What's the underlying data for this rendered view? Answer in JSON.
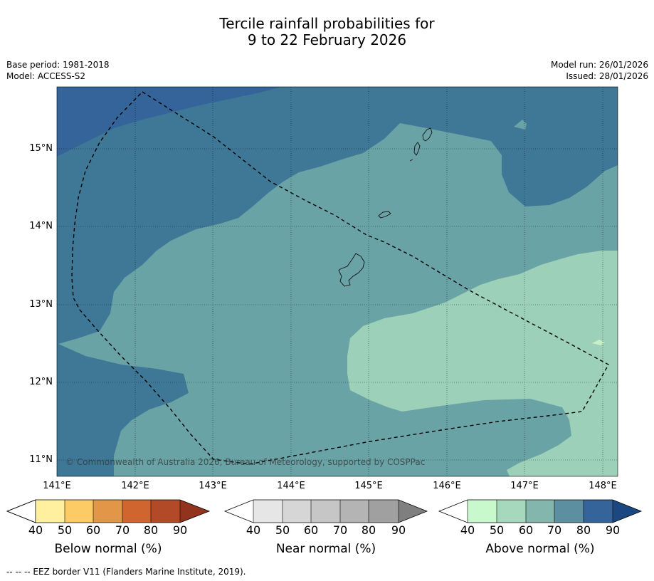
{
  "title": {
    "line1": "Tercile rainfall probabilities for",
    "line2": "9 to 22 February 2026"
  },
  "meta": {
    "base_period": "Base period: 1981-2018",
    "model": "Model: ACCESS-S2",
    "model_run": "Model run: 26/01/2026",
    "issued": "Issued: 28/01/2026"
  },
  "map": {
    "lon_ticks": [
      "141°E",
      "142°E",
      "143°E",
      "144°E",
      "145°E",
      "146°E",
      "147°E",
      "148°E"
    ],
    "lat_ticks": [
      "15°N",
      "14°N",
      "13°N",
      "12°N",
      "11°N"
    ],
    "copyright": "© Commonwealth of Australia 2026, Bureau of Meteorology, supported by COSPPac",
    "colors": {
      "above_80": "#346499",
      "above_70": "#3f7896",
      "above_60": "#6aa3a6",
      "above_50": "#9cd0b9",
      "above_40": "#c8f0c8",
      "eez_border": "#000000"
    }
  },
  "colorbars": [
    {
      "name": "below",
      "title": "Below normal (%)",
      "ticks": [
        "40",
        "50",
        "60",
        "70",
        "80",
        "90"
      ],
      "colors": [
        "#ffffff",
        "#fff0a0",
        "#fdcb65",
        "#e29648",
        "#d06530",
        "#b24a27",
        "#92331e"
      ]
    },
    {
      "name": "near",
      "title": "Near normal (%)",
      "ticks": [
        "40",
        "50",
        "60",
        "70",
        "80",
        "90"
      ],
      "colors": [
        "#ffffff",
        "#e6e6e6",
        "#d6d6d6",
        "#c6c6c6",
        "#b4b4b4",
        "#a0a0a0",
        "#7f7f7f"
      ]
    },
    {
      "name": "above",
      "title": "Above normal (%)",
      "ticks": [
        "40",
        "50",
        "60",
        "70",
        "80",
        "90"
      ],
      "colors": [
        "#ffffff",
        "#c8f9cc",
        "#a6d8bd",
        "#83b6ac",
        "#5c8fa0",
        "#346499",
        "#1c4882"
      ]
    }
  ],
  "footer": "--  --  -- EEZ border V11 (Flanders Marine Institute, 2019)."
}
